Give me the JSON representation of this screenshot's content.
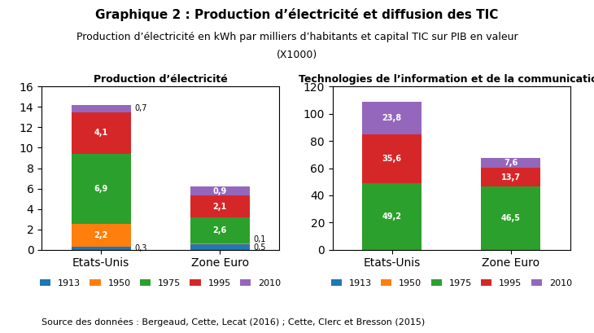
{
  "title": "Graphique 2 : Production d’électricité et diffusion des TIC",
  "subtitle": [
    "Production d’électricité en kWh par milliers d’habitants et capital TIC sur PIB en valeur",
    "(X1000)"
  ],
  "source": "Source des données : Bergeaud, Cette, Lecat (2016) ; Cette, Clerc et Bresson (2015)",
  "chart_data": [
    {
      "type": "bar",
      "stacked": true,
      "data_labels": true,
      "legend": "below",
      "title": "Production d’électricité",
      "categories": [
        "Etats-Unis",
        "Zone Euro"
      ],
      "ylim": [
        0,
        16
      ],
      "yticks": [
        0,
        2,
        4,
        6,
        8,
        10,
        12,
        14,
        16
      ],
      "series": [
        {
          "name": "1913",
          "values": [
            0.3,
            0.5
          ],
          "value_labels": [
            "0,3",
            "0,5"
          ]
        },
        {
          "name": "1950",
          "values": [
            2.2,
            0.1
          ],
          "value_labels": [
            "2,2",
            "0,1"
          ]
        },
        {
          "name": "1975",
          "values": [
            6.9,
            2.6
          ],
          "value_labels": [
            "6,9",
            "2,6"
          ]
        },
        {
          "name": "1995",
          "values": [
            4.1,
            2.1
          ],
          "value_labels": [
            "4,1",
            "2,1"
          ]
        },
        {
          "name": "2010",
          "values": [
            0.7,
            0.9
          ],
          "value_labels": [
            "0,7",
            "0,9"
          ]
        }
      ]
    },
    {
      "type": "bar",
      "stacked": true,
      "data_labels": true,
      "legend": "below",
      "title": "Technologies de l’information et de la communication",
      "categories": [
        "Etats-Unis",
        "Zone Euro"
      ],
      "ylim": [
        0,
        120
      ],
      "yticks": [
        0,
        20,
        40,
        60,
        80,
        100,
        120
      ],
      "series": [
        {
          "name": "1913",
          "values": [
            0,
            0
          ],
          "value_labels": [
            null,
            null
          ]
        },
        {
          "name": "1950",
          "values": [
            0,
            0
          ],
          "value_labels": [
            null,
            null
          ]
        },
        {
          "name": "1975",
          "values": [
            49.2,
            46.5
          ],
          "value_labels": [
            "49,2",
            "46,5"
          ]
        },
        {
          "name": "1995",
          "values": [
            35.6,
            13.7
          ],
          "value_labels": [
            "35,6",
            "13,7"
          ]
        },
        {
          "name": "2010",
          "values": [
            23.8,
            7.6
          ],
          "value_labels": [
            "23,8",
            "7,6"
          ]
        }
      ]
    }
  ]
}
